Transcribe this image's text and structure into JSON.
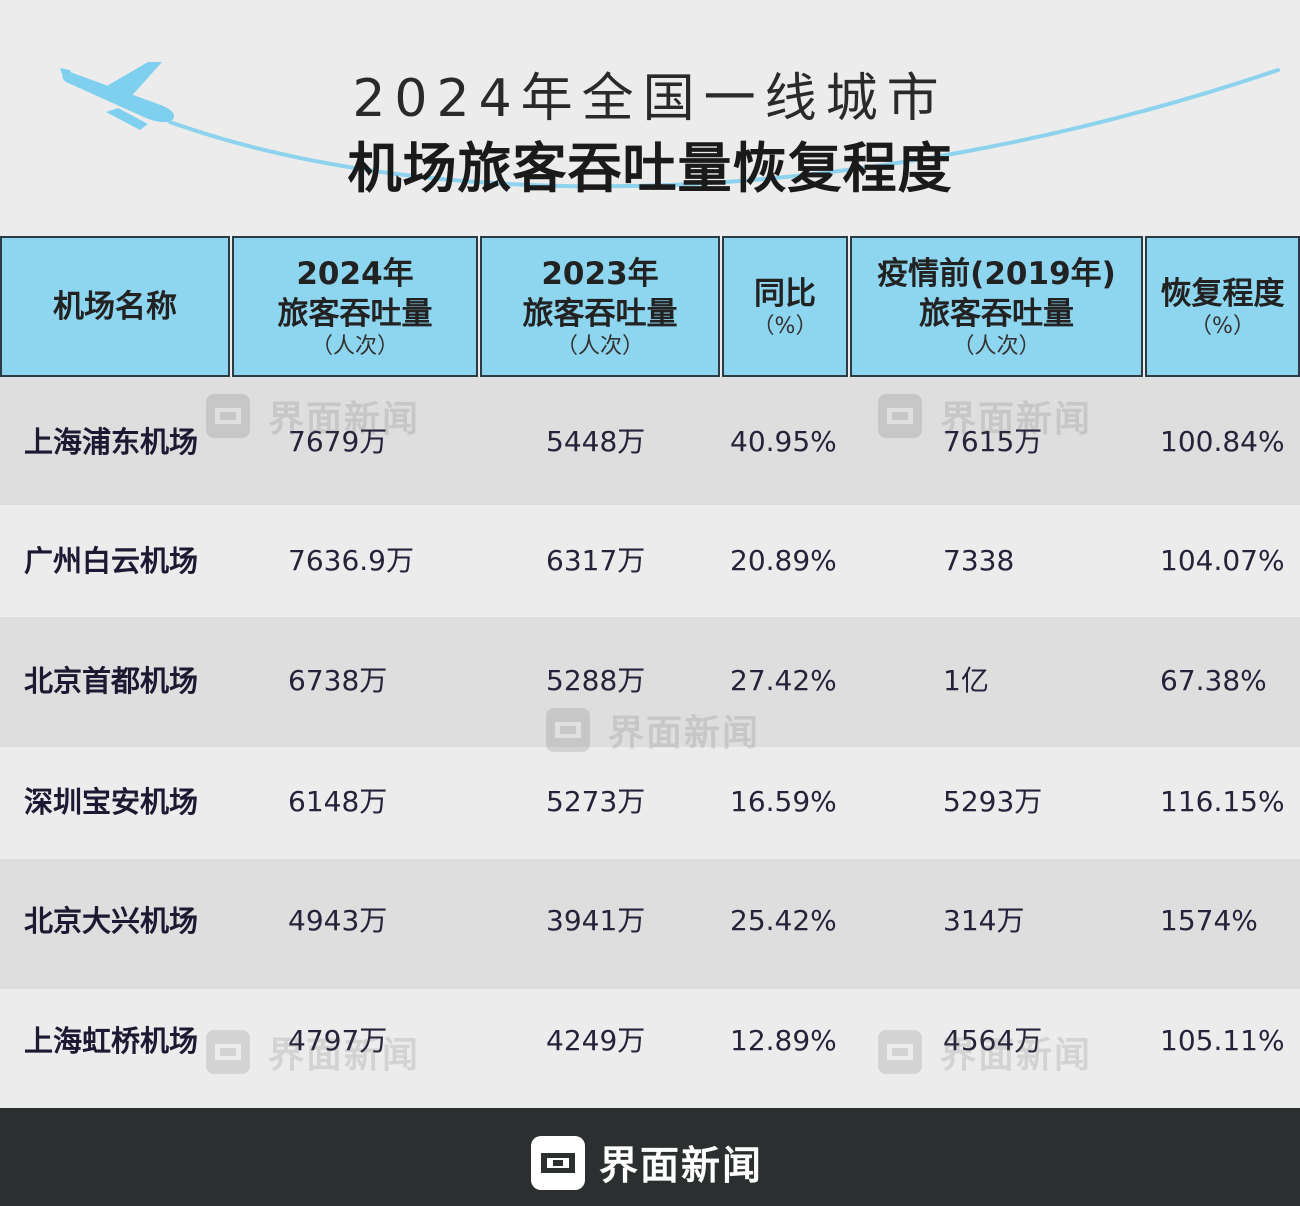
{
  "title": {
    "line1": "2024年全国一线城市",
    "line2": "机场旅客吞吐量恢复程度"
  },
  "header": {
    "col_name": "机场名称",
    "col_2024_year": "2024年",
    "col_2024_main": "旅客吞吐量",
    "col_2024_unit": "（人次）",
    "col_2023_year": "2023年",
    "col_2023_main": "旅客吞吐量",
    "col_2023_unit": "（人次）",
    "col_yoy_main": "同比",
    "col_yoy_unit": "（%）",
    "col_2019_year": "疫情前(2019年)",
    "col_2019_main": "旅客吞吐量",
    "col_2019_unit": "（人次）",
    "col_recovery_main": "恢复程度",
    "col_recovery_unit": "（%）"
  },
  "rows": [
    {
      "name": "上海浦东机场",
      "y2024": "7679万",
      "y2023": "5448万",
      "yoy": "40.95%",
      "y2019": "7615万",
      "recovery": "100.84%"
    },
    {
      "name": "广州白云机场",
      "y2024": "7636.9万",
      "y2023": "6317万",
      "yoy": "20.89%",
      "y2019": "7338",
      "recovery": "104.07%"
    },
    {
      "name": "北京首都机场",
      "y2024": "6738万",
      "y2023": "5288万",
      "yoy": "27.42%",
      "y2019": "1亿",
      "recovery": "67.38%"
    },
    {
      "name": "深圳宝安机场",
      "y2024": "6148万",
      "y2023": "5273万",
      "yoy": "16.59%",
      "y2019": "5293万",
      "recovery": "116.15%"
    },
    {
      "name": "北京大兴机场",
      "y2024": "4943万",
      "y2023": "3941万",
      "yoy": "25.42%",
      "y2019": "314万",
      "recovery": "1574%"
    },
    {
      "name": "上海虹桥机场",
      "y2024": "4797万",
      "y2023": "4249万",
      "yoy": "12.89%",
      "y2019": "4564万",
      "recovery": "105.11%"
    }
  ],
  "watermark": "界面新闻",
  "footer": {
    "brand": "界面新闻"
  },
  "colors": {
    "header_bg": "#8ed6ef",
    "accent_curve": "#8dd3ee",
    "plane": "#7fcfee",
    "footer_bg": "#2c2f30",
    "row_dark": "#dedede",
    "row_light": "#ececec"
  },
  "icons": {
    "plane": "airplane-icon",
    "brand_logo": "jiemian-logo-icon"
  }
}
